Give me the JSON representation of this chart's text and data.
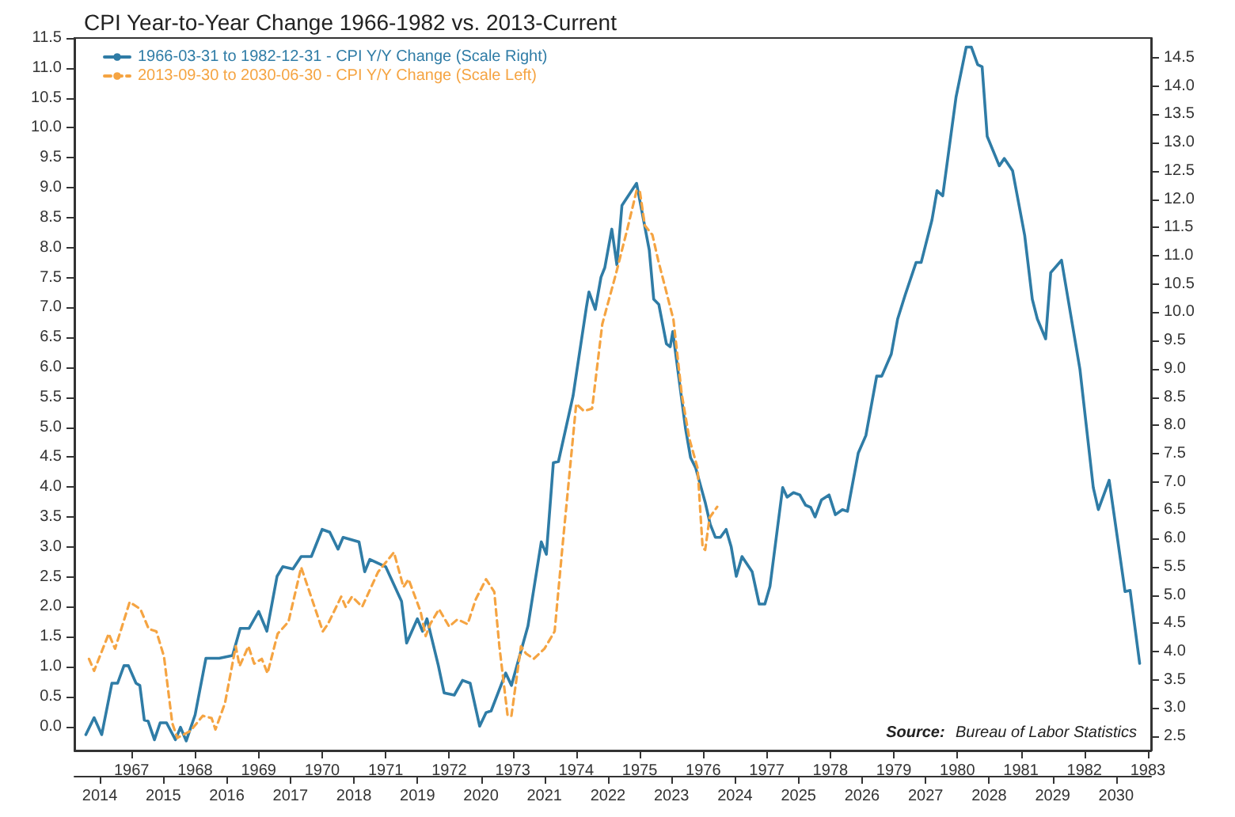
{
  "chart_data": {
    "type": "line",
    "title": "CPI Year-to-Year Change 1966-1982 vs. 2013-Current",
    "annotations": [
      "Source: Bureau of Labor Statistics"
    ],
    "legend": "top left",
    "grid": false,
    "marker": "none",
    "xlim": [
      1966.1,
      1983.05
    ],
    "xticks": [
      1967,
      1968,
      1969,
      1970,
      1971,
      1972,
      1973,
      1974,
      1975,
      1976,
      1977,
      1978,
      1979,
      1980,
      1981,
      1982,
      1983
    ],
    "x2lim": [
      2013.6,
      2030.55
    ],
    "x2ticks": [
      2014,
      2015,
      2016,
      2017,
      2018,
      2019,
      2020,
      2021,
      2022,
      2023,
      2024,
      2025,
      2026,
      2027,
      2028,
      2029,
      2030
    ],
    "ylim": [
      -0.4,
      11.5
    ],
    "yticks": [
      {
        "value": 0,
        "label": "0.0"
      },
      0.5,
      {
        "value": 1,
        "label": "1.0"
      },
      1.5,
      {
        "value": 2,
        "label": "2.0"
      },
      2.5,
      {
        "value": 3,
        "label": "3.0"
      },
      3.5,
      {
        "value": 4,
        "label": "4.0"
      },
      4.5,
      {
        "value": 5,
        "label": "5.0"
      },
      5.5,
      {
        "value": 6,
        "label": "6.0"
      },
      6.5,
      {
        "value": 7,
        "label": "7.0"
      },
      7.5,
      {
        "value": 8,
        "label": "8.0"
      },
      8.5,
      {
        "value": 9,
        "label": "9.0"
      },
      9.5,
      {
        "value": 10,
        "label": "10.0"
      },
      10.5,
      {
        "value": 11,
        "label": "11.0"
      },
      11.5
    ],
    "y2lim": [
      2.25,
      14.85
    ],
    "y2ticks": [
      2.5,
      {
        "value": 3,
        "label": "3.0"
      },
      3.5,
      {
        "value": 4,
        "label": "4.0"
      },
      4.5,
      {
        "value": 5,
        "label": "5.0"
      },
      5.5,
      {
        "value": 6,
        "label": "6.0"
      },
      6.5,
      {
        "value": 7,
        "label": "7.0"
      },
      7.5,
      {
        "value": 8,
        "label": "8.0"
      },
      8.5,
      {
        "value": 9,
        "label": "9.0"
      },
      9.5,
      {
        "value": 10,
        "label": "10.0"
      },
      10.5,
      {
        "value": 11,
        "label": "11.0"
      },
      11.5,
      {
        "value": 12,
        "label": "12.0"
      },
      12.5,
      {
        "value": 13,
        "label": "13.0"
      },
      13.5,
      {
        "value": 14,
        "label": "14.0"
      },
      14.5
    ],
    "series": [
      {
        "name": "1966-03-31 to 1982-12-31 - CPI Y/Y Change (Scale Right)",
        "color": "#2f7ca6",
        "axis": "y2",
        "line_style": "solid",
        "x": [
          1966.28,
          1966.41,
          1966.53,
          1966.69,
          1966.78,
          1966.88,
          1966.95,
          1967.07,
          1967.13,
          1967.2,
          1967.26,
          1967.36,
          1967.45,
          1967.55,
          1967.69,
          1967.77,
          1967.86,
          1968.0,
          1968.17,
          1968.38,
          1968.59,
          1968.71,
          1968.85,
          1969.0,
          1969.13,
          1969.29,
          1969.38,
          1969.54,
          1969.67,
          1969.83,
          1970.0,
          1970.12,
          1970.25,
          1970.33,
          1970.58,
          1970.67,
          1970.75,
          1971.0,
          1971.25,
          1971.33,
          1971.5,
          1971.58,
          1971.65,
          1971.83,
          1971.92,
          1972.08,
          1972.21,
          1972.33,
          1972.48,
          1972.58,
          1972.66,
          1972.89,
          1972.98,
          1973.24,
          1973.45,
          1973.53,
          1973.64,
          1973.72,
          1973.95,
          1974.16,
          1974.2,
          1974.3,
          1974.39,
          1974.45,
          1974.56,
          1974.64,
          1974.72,
          1974.95,
          1975.15,
          1975.22,
          1975.3,
          1975.42,
          1975.48,
          1975.52,
          1975.72,
          1975.8,
          1975.88,
          1976.03,
          1976.11,
          1976.19,
          1976.27,
          1976.36,
          1976.44,
          1976.52,
          1976.61,
          1976.77,
          1976.88,
          1976.97,
          1977.05,
          1977.25,
          1977.32,
          1977.42,
          1977.52,
          1977.61,
          1977.69,
          1977.76,
          1977.86,
          1977.98,
          1978.08,
          1978.19,
          1978.27,
          1978.44,
          1978.56,
          1978.73,
          1978.81,
          1978.96,
          1979.06,
          1979.18,
          1979.35,
          1979.43,
          1979.6,
          1979.68,
          1979.77,
          1979.98,
          1980.14,
          1980.22,
          1980.32,
          1980.39,
          1980.47,
          1980.66,
          1980.74,
          1980.87,
          1981.06,
          1981.18,
          1981.26,
          1981.39,
          1981.47,
          1981.64,
          1981.93,
          1982.14,
          1982.22,
          1982.39,
          1982.64,
          1982.72,
          1982.87
        ],
        "values": [
          2.53,
          2.83,
          2.53,
          3.44,
          3.44,
          3.75,
          3.75,
          3.44,
          3.4,
          2.79,
          2.77,
          2.44,
          2.74,
          2.74,
          2.44,
          2.66,
          2.42,
          2.88,
          3.88,
          3.88,
          3.93,
          4.41,
          4.41,
          4.71,
          4.36,
          5.33,
          5.5,
          5.46,
          5.68,
          5.68,
          6.16,
          6.11,
          5.81,
          6.02,
          5.94,
          5.41,
          5.63,
          5.5,
          4.89,
          4.15,
          4.58,
          4.36,
          4.58,
          3.75,
          3.27,
          3.23,
          3.49,
          3.44,
          2.68,
          2.92,
          2.95,
          3.62,
          3.4,
          4.45,
          5.94,
          5.72,
          7.34,
          7.36,
          8.52,
          10.09,
          10.36,
          10.05,
          10.62,
          10.79,
          11.47,
          10.84,
          11.89,
          12.28,
          11.1,
          10.23,
          10.14,
          9.44,
          9.39,
          9.66,
          7.95,
          7.43,
          7.25,
          6.64,
          6.25,
          6.02,
          6.02,
          6.16,
          5.85,
          5.33,
          5.68,
          5.41,
          4.84,
          4.84,
          5.15,
          6.9,
          6.73,
          6.81,
          6.77,
          6.59,
          6.55,
          6.38,
          6.68,
          6.77,
          6.42,
          6.51,
          6.48,
          7.51,
          7.82,
          8.87,
          8.87,
          9.26,
          9.88,
          10.31,
          10.88,
          10.88,
          11.63,
          12.15,
          12.06,
          13.81,
          14.69,
          14.69,
          14.38,
          14.34,
          13.11,
          12.59,
          12.72,
          12.5,
          11.36,
          10.23,
          9.88,
          9.53,
          10.7,
          10.92,
          8.99,
          6.9,
          6.51,
          7.03,
          5.06,
          5.08,
          3.79
        ]
      },
      {
        "name": "2013-09-30 to 2030-06-30 - CPI Y/Y Change (Scale Left)",
        "color": "#f5a442",
        "axis": "x2",
        "line_style": "dashed",
        "x": [
          2013.83,
          2013.91,
          2014.14,
          2014.24,
          2014.47,
          2014.64,
          2014.77,
          2014.89,
          2015.01,
          2015.14,
          2015.22,
          2015.43,
          2015.62,
          2015.76,
          2015.82,
          2015.97,
          2016.14,
          2016.2,
          2016.34,
          2016.43,
          2016.55,
          2016.64,
          2016.8,
          2016.97,
          2017.17,
          2017.38,
          2017.51,
          2017.59,
          2017.8,
          2017.87,
          2017.97,
          2018.13,
          2018.38,
          2018.63,
          2018.78,
          2018.86,
          2019.05,
          2019.13,
          2019.2,
          2019.34,
          2019.5,
          2019.63,
          2019.79,
          2019.92,
          2020.08,
          2020.21,
          2020.29,
          2020.42,
          2020.48,
          2020.63,
          2020.71,
          2020.83,
          2021.0,
          2021.16,
          2021.29,
          2021.5,
          2021.62,
          2021.75,
          2021.91,
          2022.12,
          2022.3,
          2022.45,
          2022.5,
          2022.58,
          2022.7,
          2022.79,
          2023.03,
          2023.16,
          2023.28,
          2023.41,
          2023.49,
          2023.53,
          2023.6,
          2023.72
        ],
        "values": [
          1.13,
          0.93,
          1.55,
          1.3,
          2.08,
          1.96,
          1.63,
          1.59,
          1.17,
          0.06,
          -0.19,
          -0.07,
          0.18,
          0.14,
          -0.05,
          0.39,
          1.34,
          1.01,
          1.34,
          1.05,
          1.13,
          0.89,
          1.55,
          1.75,
          2.66,
          2.0,
          1.59,
          1.71,
          2.17,
          2.0,
          2.17,
          2.0,
          2.58,
          2.91,
          2.33,
          2.46,
          1.92,
          1.51,
          1.71,
          1.96,
          1.67,
          1.79,
          1.71,
          2.13,
          2.46,
          2.25,
          1.34,
          0.18,
          0.18,
          1.34,
          1.22,
          1.13,
          1.3,
          1.59,
          3.08,
          5.39,
          5.27,
          5.31,
          6.72,
          7.54,
          8.29,
          8.95,
          8.95,
          8.37,
          8.21,
          7.79,
          6.8,
          5.56,
          4.81,
          4.32,
          2.99,
          2.95,
          3.49,
          3.67
        ]
      }
    ]
  }
}
